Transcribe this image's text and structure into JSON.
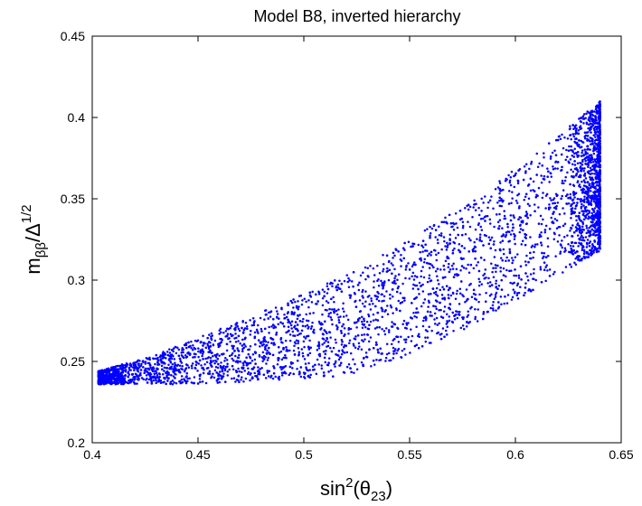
{
  "chart_data": {
    "type": "scatter",
    "title": "Model B8, inverted hierarchy",
    "xlabel": {
      "base": "sin",
      "sup": "2",
      "paren_open": "(θ",
      "sub": "23",
      "paren_close": ")"
    },
    "ylabel": {
      "base": "m",
      "sub": "ββ",
      "mid": "/Δ",
      "sup": "1/2"
    },
    "xlim": [
      0.4,
      0.65
    ],
    "ylim": [
      0.2,
      0.45
    ],
    "xticks": [
      "0.4",
      "0.45",
      "0.5",
      "0.55",
      "0.6",
      "0.65"
    ],
    "yticks": [
      "0.2",
      "0.25",
      "0.3",
      "0.35",
      "0.4",
      "0.45"
    ],
    "marker_color": "#0000ff",
    "grid": false,
    "region": {
      "x_min": 0.403,
      "x_max": 0.64,
      "lower_boundary": [
        [
          0.403,
          0.236
        ],
        [
          0.45,
          0.236
        ],
        [
          0.48,
          0.238
        ],
        [
          0.52,
          0.241
        ],
        [
          0.55,
          0.254
        ],
        [
          0.58,
          0.272
        ],
        [
          0.61,
          0.295
        ],
        [
          0.64,
          0.318
        ]
      ],
      "upper_boundary": [
        [
          0.403,
          0.244
        ],
        [
          0.43,
          0.254
        ],
        [
          0.46,
          0.27
        ],
        [
          0.49,
          0.286
        ],
        [
          0.52,
          0.303
        ],
        [
          0.55,
          0.325
        ],
        [
          0.58,
          0.349
        ],
        [
          0.61,
          0.378
        ],
        [
          0.64,
          0.41
        ]
      ],
      "point_count": 5000
    }
  }
}
